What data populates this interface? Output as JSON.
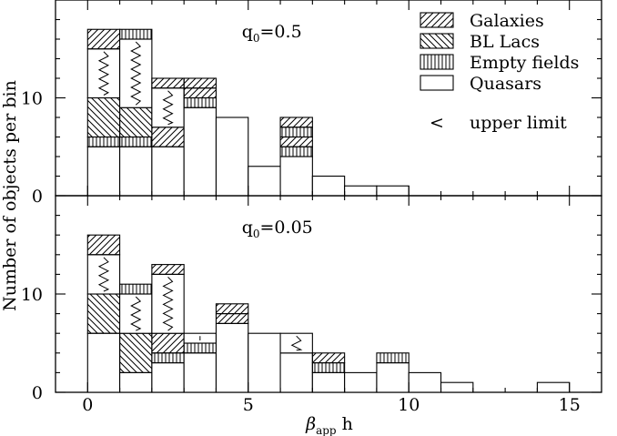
{
  "chart_data": {
    "type": "bar",
    "stacked": true,
    "ylabel": "Number of objects per bin",
    "xlabel": {
      "main": "β",
      "sub": "app",
      "suffix": " h"
    },
    "xlim": [
      -1,
      16
    ],
    "xticks": [
      0,
      5,
      10,
      15
    ],
    "ylim": [
      0,
      20
    ],
    "yticks": [
      0,
      10
    ],
    "bin_width": 1,
    "legend": {
      "placement": "top-right",
      "entries": [
        {
          "label": "Galaxies",
          "pattern": "hatch-forward"
        },
        {
          "label": "BL Lacs",
          "pattern": "hatch-backward"
        },
        {
          "label": "Empty fields",
          "pattern": "vertical-lines"
        },
        {
          "label": "Quasars",
          "pattern": "none"
        }
      ],
      "upper_limit": {
        "symbol": "<",
        "label": "upper limit"
      }
    },
    "panels": [
      {
        "annotation": {
          "text": "q",
          "sub": "0",
          "rest": "=0.5"
        },
        "bins": [
          {
            "x": 0,
            "quasars": 5,
            "empty_fields": 1,
            "bl_lacs": 4,
            "galaxies": 0,
            "upper_limit": 5,
            "top_galaxies": 2,
            "top_empty_fields": 0
          },
          {
            "x": 1,
            "quasars": 5,
            "empty_fields": 1,
            "bl_lacs": 3,
            "galaxies": 0,
            "upper_limit": 7,
            "top_galaxies": 0,
            "top_empty_fields": 1
          },
          {
            "x": 2,
            "quasars": 5,
            "empty_fields": 0,
            "bl_lacs": 0,
            "galaxies": 2,
            "upper_limit": 4,
            "top_galaxies": 1,
            "top_empty_fields": 0
          },
          {
            "x": 3,
            "quasars": 9,
            "empty_fields": 1,
            "bl_lacs": 0,
            "galaxies": 1,
            "upper_limit": 0,
            "top_galaxies": 1,
            "top_empty_fields": 0
          },
          {
            "x": 4,
            "quasars": 8,
            "empty_fields": 0,
            "bl_lacs": 0,
            "galaxies": 0,
            "upper_limit": 0,
            "top_galaxies": 0,
            "top_empty_fields": 0
          },
          {
            "x": 5,
            "quasars": 3,
            "empty_fields": 0,
            "bl_lacs": 0,
            "galaxies": 0,
            "upper_limit": 0,
            "top_galaxies": 0,
            "top_empty_fields": 0
          },
          {
            "x": 6,
            "quasars": 4,
            "empty_fields": 1,
            "bl_lacs": 0,
            "galaxies": 1,
            "upper_limit": 0,
            "top_galaxies": 1,
            "top_empty_fields": 1
          },
          {
            "x": 7,
            "quasars": 2,
            "empty_fields": 0,
            "bl_lacs": 0,
            "galaxies": 0,
            "upper_limit": 0,
            "top_galaxies": 0,
            "top_empty_fields": 0
          },
          {
            "x": 8,
            "quasars": 1,
            "empty_fields": 0,
            "bl_lacs": 0,
            "galaxies": 0,
            "upper_limit": 0,
            "top_galaxies": 0,
            "top_empty_fields": 0
          },
          {
            "x": 9,
            "quasars": 1,
            "empty_fields": 0,
            "bl_lacs": 0,
            "galaxies": 0,
            "upper_limit": 0,
            "top_galaxies": 0,
            "top_empty_fields": 0
          }
        ]
      },
      {
        "annotation": {
          "text": "q",
          "sub": "0",
          "rest": "=0.05"
        },
        "bins": [
          {
            "x": 0,
            "quasars": 6,
            "empty_fields": 0,
            "bl_lacs": 4,
            "galaxies": 0,
            "upper_limit": 4,
            "top_galaxies": 2,
            "top_empty_fields": 0
          },
          {
            "x": 1,
            "quasars": 2,
            "empty_fields": 0,
            "bl_lacs": 4,
            "galaxies": 0,
            "upper_limit": 4,
            "top_galaxies": 0,
            "top_empty_fields": 1
          },
          {
            "x": 2,
            "quasars": 3,
            "empty_fields": 1,
            "bl_lacs": 0,
            "galaxies": 2,
            "upper_limit": 6,
            "top_galaxies": 1,
            "top_empty_fields": 0
          },
          {
            "x": 3,
            "quasars": 4,
            "empty_fields": 1,
            "bl_lacs": 0,
            "galaxies": 0,
            "upper_limit": 1,
            "top_galaxies": 0,
            "top_empty_fields": 0
          },
          {
            "x": 4,
            "quasars": 7,
            "empty_fields": 0,
            "bl_lacs": 0,
            "galaxies": 1,
            "upper_limit": 0,
            "top_galaxies": 1,
            "top_empty_fields": 0
          },
          {
            "x": 5,
            "quasars": 6,
            "empty_fields": 0,
            "bl_lacs": 0,
            "galaxies": 0,
            "upper_limit": 0,
            "top_galaxies": 0,
            "top_empty_fields": 0
          },
          {
            "x": 6,
            "quasars": 4,
            "empty_fields": 0,
            "bl_lacs": 0,
            "galaxies": 0,
            "upper_limit": 2,
            "top_galaxies": 0,
            "top_empty_fields": 0
          },
          {
            "x": 7,
            "quasars": 2,
            "empty_fields": 1,
            "bl_lacs": 0,
            "galaxies": 1,
            "upper_limit": 0,
            "top_galaxies": 0,
            "top_empty_fields": 0
          },
          {
            "x": 8,
            "quasars": 2,
            "empty_fields": 0,
            "bl_lacs": 0,
            "galaxies": 0,
            "upper_limit": 0,
            "top_galaxies": 0,
            "top_empty_fields": 0
          },
          {
            "x": 9,
            "quasars": 3,
            "empty_fields": 1,
            "bl_lacs": 0,
            "galaxies": 0,
            "upper_limit": 0,
            "top_galaxies": 0,
            "top_empty_fields": 0
          },
          {
            "x": 10,
            "quasars": 2,
            "empty_fields": 0,
            "bl_lacs": 0,
            "galaxies": 0,
            "upper_limit": 0,
            "top_galaxies": 0,
            "top_empty_fields": 0
          },
          {
            "x": 11,
            "quasars": 1,
            "empty_fields": 0,
            "bl_lacs": 0,
            "galaxies": 0,
            "upper_limit": 0,
            "top_galaxies": 0,
            "top_empty_fields": 0
          },
          {
            "x": 14,
            "quasars": 1,
            "empty_fields": 0,
            "bl_lacs": 0,
            "galaxies": 0,
            "upper_limit": 0,
            "top_galaxies": 0,
            "top_empty_fields": 0
          }
        ]
      }
    ]
  }
}
